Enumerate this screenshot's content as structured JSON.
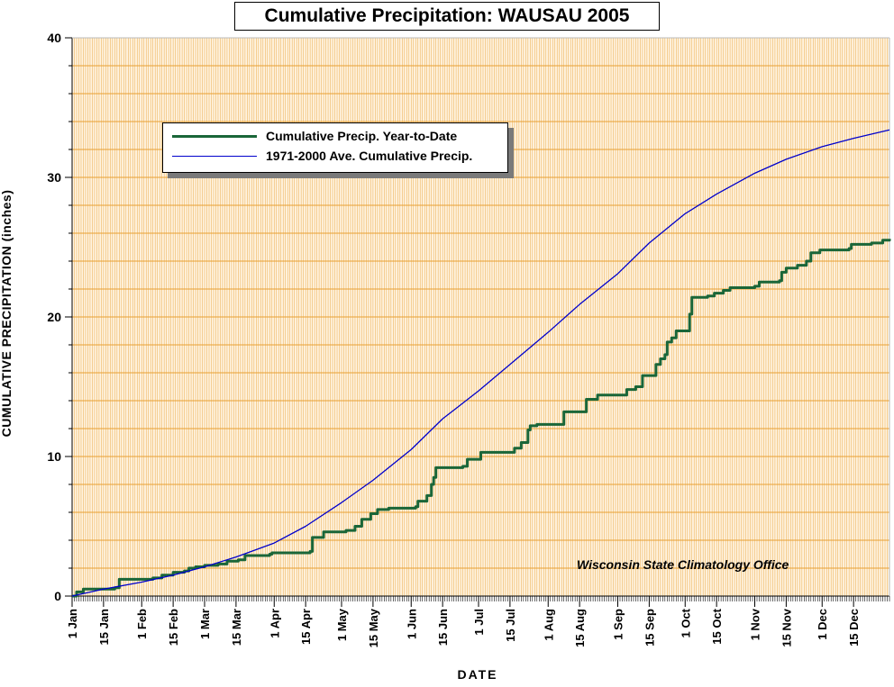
{
  "chart_data": {
    "type": "line",
    "title": "Cumulative Precipitation: WAUSAU 2005",
    "xlabel": "DATE",
    "ylabel": "CUMULATIVE PRECIPITATION (inches)",
    "ylim": [
      0,
      40
    ],
    "yticks": [
      "0",
      "10",
      "20",
      "30",
      "40"
    ],
    "x_range_days": [
      1,
      365
    ],
    "x_tick_labels": [
      {
        "label": "1 Jan",
        "day": 1
      },
      {
        "label": "15 Jan",
        "day": 15
      },
      {
        "label": "1 Feb",
        "day": 32
      },
      {
        "label": "15 Feb",
        "day": 46
      },
      {
        "label": "1 Mar",
        "day": 60
      },
      {
        "label": "15 Mar",
        "day": 74
      },
      {
        "label": "1 Apr",
        "day": 91
      },
      {
        "label": "15 Apr",
        "day": 105
      },
      {
        "label": "1 May",
        "day": 121
      },
      {
        "label": "15 May",
        "day": 135
      },
      {
        "label": "1 Jun",
        "day": 152
      },
      {
        "label": "15 Jun",
        "day": 166
      },
      {
        "label": "1 Jul",
        "day": 182
      },
      {
        "label": "15 Jul",
        "day": 196
      },
      {
        "label": "1 Aug",
        "day": 213
      },
      {
        "label": "15 Aug",
        "day": 227
      },
      {
        "label": "1 Sep",
        "day": 244
      },
      {
        "label": "15 Sep",
        "day": 258
      },
      {
        "label": "1 Oct",
        "day": 274
      },
      {
        "label": "15 Oct",
        "day": 288
      },
      {
        "label": "1 Nov",
        "day": 305
      },
      {
        "label": "15 Nov",
        "day": 319
      },
      {
        "label": "1 Dec",
        "day": 335
      },
      {
        "label": "15 Dec",
        "day": 349
      }
    ],
    "grid": true,
    "legend_placement": "upper-left",
    "series": [
      {
        "name": "Cumulative Precip. Year-to-Date",
        "color": "#1a6638",
        "step": true,
        "points": [
          [
            1,
            0.0
          ],
          [
            3,
            0.3
          ],
          [
            6,
            0.5
          ],
          [
            20,
            0.6
          ],
          [
            22,
            1.2
          ],
          [
            37,
            1.3
          ],
          [
            41,
            1.5
          ],
          [
            46,
            1.7
          ],
          [
            51,
            1.8
          ],
          [
            53,
            2.0
          ],
          [
            56,
            2.1
          ],
          [
            60,
            2.2
          ],
          [
            66,
            2.3
          ],
          [
            70,
            2.5
          ],
          [
            75,
            2.6
          ],
          [
            78,
            2.9
          ],
          [
            89,
            3.0
          ],
          [
            90,
            3.1
          ],
          [
            107,
            3.2
          ],
          [
            108,
            4.2
          ],
          [
            113,
            4.6
          ],
          [
            123,
            4.7
          ],
          [
            127,
            5.0
          ],
          [
            130,
            5.5
          ],
          [
            134,
            5.9
          ],
          [
            137,
            6.2
          ],
          [
            142,
            6.3
          ],
          [
            154,
            6.4
          ],
          [
            155,
            6.8
          ],
          [
            159,
            7.2
          ],
          [
            161,
            8.0
          ],
          [
            162,
            8.5
          ],
          [
            163,
            9.2
          ],
          [
            175,
            9.3
          ],
          [
            177,
            9.8
          ],
          [
            183,
            10.3
          ],
          [
            198,
            10.6
          ],
          [
            201,
            11.0
          ],
          [
            204,
            11.9
          ],
          [
            205,
            12.2
          ],
          [
            208,
            12.3
          ],
          [
            220,
            13.2
          ],
          [
            230,
            14.1
          ],
          [
            235,
            14.4
          ],
          [
            248,
            14.8
          ],
          [
            252,
            15.0
          ],
          [
            255,
            15.8
          ],
          [
            261,
            16.6
          ],
          [
            263,
            17.0
          ],
          [
            265,
            17.3
          ],
          [
            266,
            18.2
          ],
          [
            268,
            18.5
          ],
          [
            270,
            19.0
          ],
          [
            276,
            20.2
          ],
          [
            277,
            21.4
          ],
          [
            284,
            21.5
          ],
          [
            287,
            21.7
          ],
          [
            291,
            21.9
          ],
          [
            294,
            22.1
          ],
          [
            305,
            22.2
          ],
          [
            307,
            22.5
          ],
          [
            316,
            22.6
          ],
          [
            317,
            23.2
          ],
          [
            319,
            23.5
          ],
          [
            324,
            23.7
          ],
          [
            328,
            24.0
          ],
          [
            330,
            24.6
          ],
          [
            334,
            24.8
          ],
          [
            347,
            24.9
          ],
          [
            348,
            25.2
          ],
          [
            357,
            25.3
          ],
          [
            362,
            25.5
          ],
          [
            365,
            25.6
          ]
        ]
      },
      {
        "name": "1971-2000 Ave. Cumulative Precip.",
        "color": "#0000cc",
        "step": false,
        "points": [
          [
            1,
            0.0
          ],
          [
            15,
            0.5
          ],
          [
            32,
            1.0
          ],
          [
            46,
            1.5
          ],
          [
            60,
            2.1
          ],
          [
            74,
            2.8
          ],
          [
            91,
            3.8
          ],
          [
            105,
            5.0
          ],
          [
            121,
            6.7
          ],
          [
            135,
            8.3
          ],
          [
            152,
            10.5
          ],
          [
            166,
            12.7
          ],
          [
            182,
            14.7
          ],
          [
            196,
            16.6
          ],
          [
            213,
            18.9
          ],
          [
            227,
            20.9
          ],
          [
            244,
            23.1
          ],
          [
            258,
            25.3
          ],
          [
            274,
            27.4
          ],
          [
            288,
            28.8
          ],
          [
            305,
            30.3
          ],
          [
            319,
            31.3
          ],
          [
            335,
            32.2
          ],
          [
            349,
            32.8
          ],
          [
            365,
            33.4
          ]
        ]
      }
    ],
    "annotation": "Wisconsin State Climatology Office"
  }
}
